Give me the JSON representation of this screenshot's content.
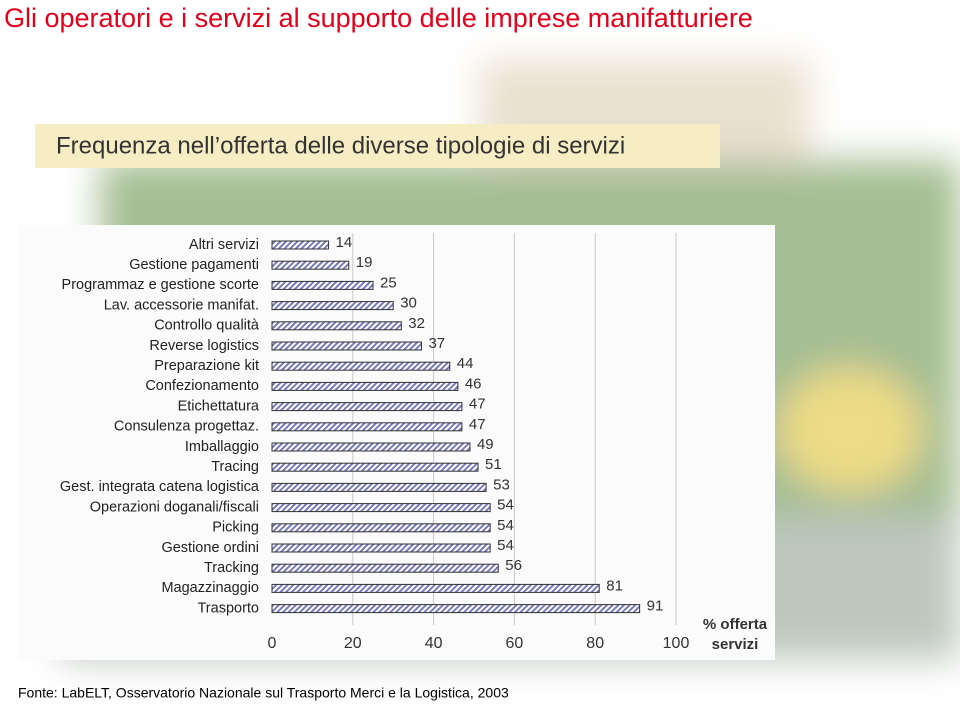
{
  "chart_data": {
    "type": "bar",
    "orientation": "horizontal",
    "title": "Gli operatori e i servizi al supporto delle imprese manifatturiere",
    "subtitle": "Frequenza nell’offerta delle diverse tipologie di servizi",
    "categories": [
      "Altri servizi",
      "Gestione pagamenti",
      "Programmaz e gestione scorte",
      "Lav. accessorie manifat.",
      "Controllo qualità",
      "Reverse logistics",
      "Preparazione kit",
      "Confezionamento",
      "Etichettatura",
      "Consulenza progettaz.",
      "Imballaggio",
      "Tracing",
      "Gest. integrata catena logistica",
      "Operazioni doganali/fiscali",
      "Picking",
      "Gestione ordini",
      "Tracking",
      "Magazzinaggio",
      "Trasporto"
    ],
    "values": [
      14,
      19,
      25,
      30,
      32,
      37,
      44,
      46,
      47,
      47,
      49,
      51,
      53,
      54,
      54,
      54,
      56,
      81,
      91
    ],
    "color": "#7a78c0",
    "xlim": [
      0,
      100
    ],
    "xticks": [
      0,
      20,
      40,
      60,
      80,
      100
    ],
    "grid": true,
    "x_label": "% offerta servizi",
    "source": "Fonte:  LabELT, Osservatorio Nazionale sul Trasporto Merci e la Logistica, 2003"
  }
}
